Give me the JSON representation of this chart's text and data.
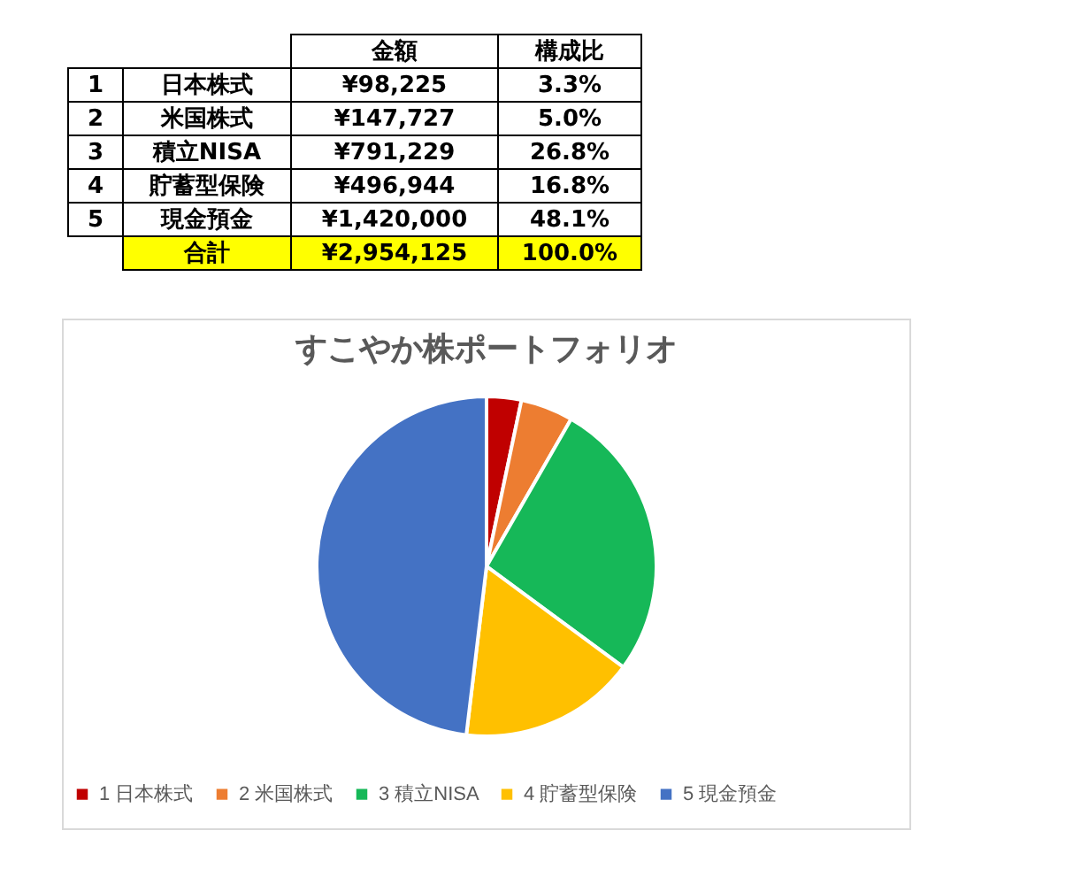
{
  "chart_data": {
    "type": "pie",
    "title": "すこやか株ポートフォリオ",
    "categories": [
      "1 日本株式",
      "2 米国株式",
      "3 積立NISA",
      "4 貯蓄型保険",
      "5 現金預金"
    ],
    "values": [
      3.3,
      5.0,
      26.8,
      16.8,
      48.1
    ],
    "colors": [
      "#c00000",
      "#ed7d31",
      "#16b858",
      "#ffc000",
      "#4472c4"
    ],
    "annotations": [
      "金額",
      "構成比",
      "¥98,225",
      "3.3%",
      "¥147,727",
      "5.0%",
      "¥791,229",
      "26.8%",
      "¥496,944",
      "16.8%",
      "¥1,420,000",
      "48.1%",
      "合計",
      "¥2,954,125",
      "100.0%"
    ],
    "legend": "bottom"
  }
}
